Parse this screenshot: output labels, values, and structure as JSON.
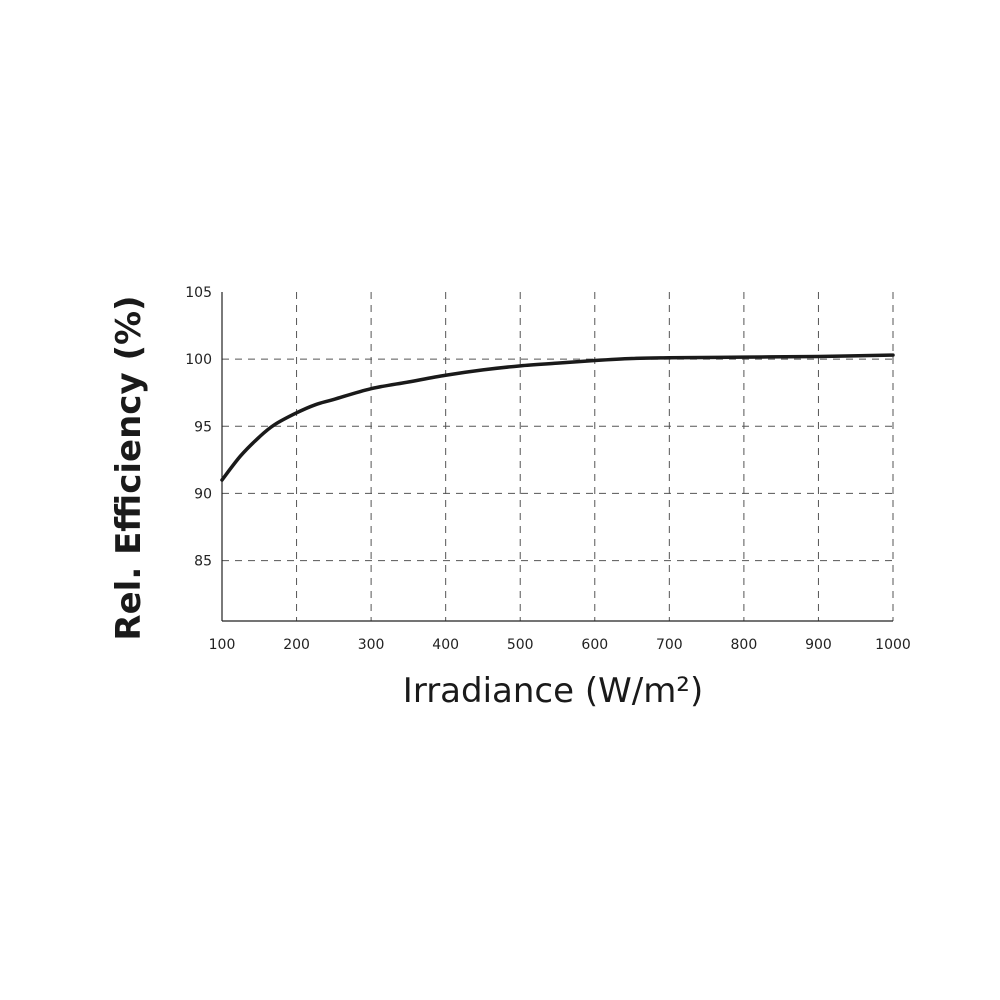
{
  "chart_data": {
    "type": "line",
    "title": "",
    "xlabel": "Irradiance (W/m²)",
    "ylabel": "Rel. Efficiency (%)",
    "xlim": [
      100,
      1000
    ],
    "ylim": [
      80.5,
      105
    ],
    "x_ticks": [
      100,
      200,
      300,
      400,
      500,
      600,
      700,
      800,
      900,
      1000
    ],
    "y_ticks": [
      85,
      90,
      95,
      100,
      105
    ],
    "grid": true,
    "grid_style": "dashed",
    "line_color": "#1a1a1a",
    "series": [
      {
        "x": [
          100,
          125,
          150,
          170,
          200,
          225,
          250,
          300,
          350,
          400,
          450,
          500,
          550,
          600,
          650,
          700,
          800,
          900,
          1000
        ],
        "y": [
          91.0,
          92.8,
          94.2,
          95.1,
          96.0,
          96.6,
          97.0,
          97.8,
          98.3,
          98.8,
          99.2,
          99.5,
          99.7,
          99.9,
          100.05,
          100.1,
          100.15,
          100.2,
          100.3
        ]
      }
    ]
  }
}
